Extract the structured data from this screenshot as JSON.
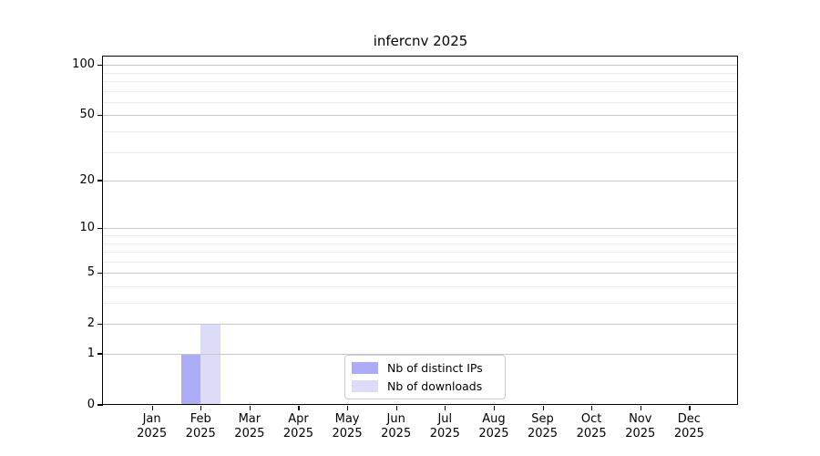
{
  "chart_data": {
    "type": "bar",
    "title": "infercnv 2025",
    "categories": [
      {
        "month": "Jan",
        "year": "2025"
      },
      {
        "month": "Feb",
        "year": "2025"
      },
      {
        "month": "Mar",
        "year": "2025"
      },
      {
        "month": "Apr",
        "year": "2025"
      },
      {
        "month": "May",
        "year": "2025"
      },
      {
        "month": "Jun",
        "year": "2025"
      },
      {
        "month": "Jul",
        "year": "2025"
      },
      {
        "month": "Aug",
        "year": "2025"
      },
      {
        "month": "Sep",
        "year": "2025"
      },
      {
        "month": "Oct",
        "year": "2025"
      },
      {
        "month": "Nov",
        "year": "2025"
      },
      {
        "month": "Dec",
        "year": "2025"
      }
    ],
    "series": [
      {
        "name": "Nb of distinct IPs",
        "color": "#acacf6",
        "values": [
          0,
          1,
          0,
          0,
          0,
          0,
          0,
          0,
          0,
          0,
          0,
          0
        ]
      },
      {
        "name": "Nb of downloads",
        "color": "#dcdcf8",
        "values": [
          0,
          2,
          0,
          0,
          0,
          0,
          0,
          0,
          0,
          0,
          0,
          0
        ]
      }
    ],
    "y_axis": {
      "scale": "log10(1+value)",
      "major_ticks": [
        100,
        50,
        20,
        10,
        5,
        2,
        1,
        0
      ],
      "minor_ticks": [
        90,
        80,
        70,
        60,
        40,
        30,
        9,
        8,
        7,
        6,
        4,
        3
      ],
      "range": [
        0,
        110
      ]
    },
    "x_axis": {
      "unit": "month"
    },
    "grid": {
      "orientation": "horizontal",
      "major_color": "#c7c7c7",
      "minor_color": "#ededed"
    },
    "legend": {
      "position": "bottom-center-inside",
      "entries": [
        {
          "label": "Nb of distinct IPs",
          "color": "#acacf6"
        },
        {
          "label": "Nb of downloads",
          "color": "#dcdcf8"
        }
      ]
    }
  }
}
